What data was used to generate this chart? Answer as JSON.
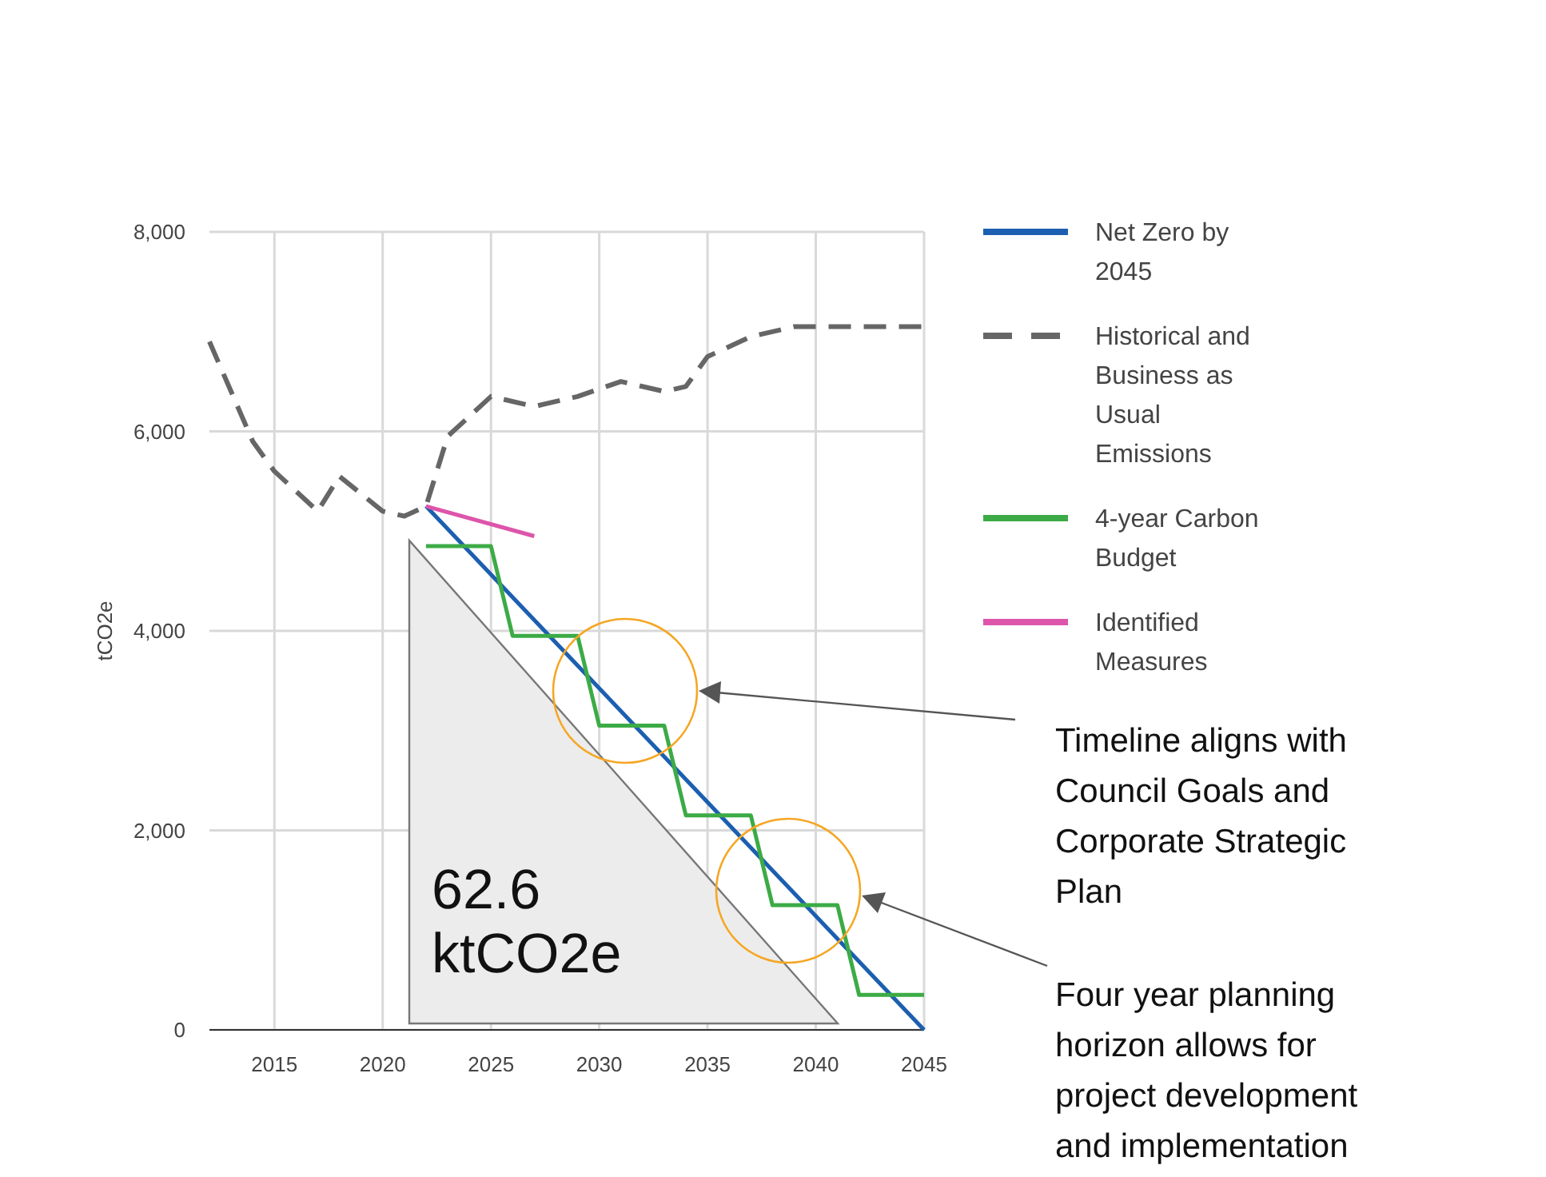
{
  "chart_data": {
    "type": "line",
    "ylabel": "tCO2e",
    "xlim": [
      2012,
      2045
    ],
    "xticks": [
      2015,
      2020,
      2025,
      2030,
      2035,
      2040,
      2045
    ],
    "ylim": [
      0,
      8000
    ],
    "yticks": [
      {
        "value": 0,
        "label": "0"
      },
      {
        "value": 2000,
        "label": "2,000"
      },
      {
        "value": 4000,
        "label": "4,000"
      },
      {
        "value": 6000,
        "label": "6,000"
      },
      {
        "value": 8000,
        "label": "8,000"
      }
    ],
    "grid": true,
    "legend": "top right",
    "series": [
      {
        "name": "Net Zero by 2045",
        "color": "#1c5fb0",
        "x": [
          2022,
          2045
        ],
        "values": [
          5250,
          0
        ]
      },
      {
        "name": "Historical and Business as Usual Emissions",
        "color": "#666666",
        "line_style": "dashed",
        "x": [
          2012,
          2014,
          2015,
          2017,
          2018,
          2020,
          2021,
          2022,
          2023,
          2025,
          2027,
          2029,
          2031,
          2033,
          2034,
          2035,
          2037,
          2039,
          2045
        ],
        "values": [
          6900,
          5900,
          5600,
          5200,
          5550,
          5200,
          5150,
          5250,
          5950,
          6350,
          6250,
          6350,
          6500,
          6400,
          6450,
          6750,
          6950,
          7050,
          7050
        ]
      },
      {
        "name": "4-year Carbon Budget",
        "color": "#3cab46",
        "x": [
          2022,
          2025,
          2026,
          2029,
          2030,
          2033,
          2034,
          2037,
          2038,
          2041,
          2042,
          2045
        ],
        "values": [
          4850,
          4850,
          3950,
          3950,
          3050,
          3050,
          2150,
          2150,
          1250,
          1250,
          350,
          350
        ]
      },
      {
        "name": "Identified Measures",
        "color": "#dd55aa",
        "x": [
          2022,
          2027
        ],
        "values": [
          5250,
          4950
        ]
      }
    ],
    "annotations": [
      "62.6 ktCO2e",
      "Timeline aligns with Council Goals and Corporate Strategic Plan",
      "Four year planning horizon allows for project development and implementation"
    ]
  }
}
